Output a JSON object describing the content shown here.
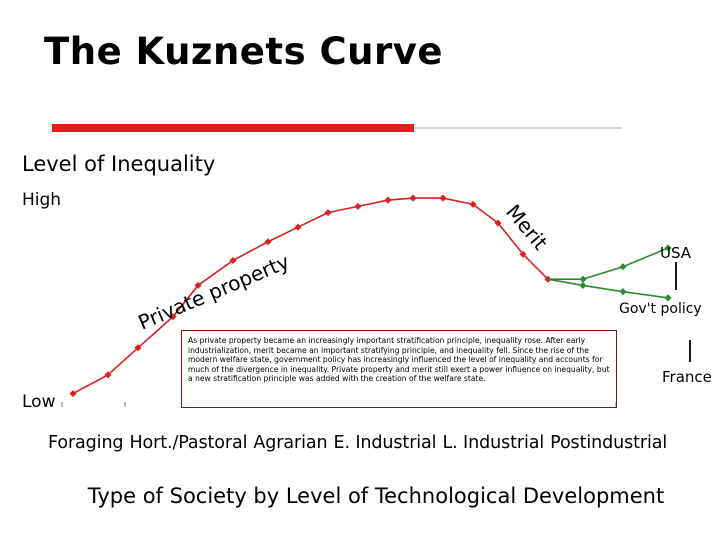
{
  "slide": {
    "title": "The Kuznets Curve",
    "accent_color": "#dd1f1f"
  },
  "chart_data": {
    "type": "line",
    "title": "",
    "ylabel": "Level of Inequality",
    "y_high_label": "High",
    "y_low_label": "Low",
    "xlabel": "Type of Society by Level of Technological Development",
    "categories": [
      "Foraging",
      "Hort./Pastoral",
      "Agrarian",
      "E. Industrial",
      "L. Industrial",
      "Postindustrial"
    ],
    "curve_annotations": {
      "private_property": "Private property",
      "merit": "Merit",
      "usa": "USA",
      "govt_policy": "Gov't policy",
      "france": "France"
    },
    "series": [
      {
        "color": "#dd1f1f",
        "marker_color": "#dd1f1f",
        "x": [
          0.35,
          0.7,
          1.0,
          1.35,
          1.6,
          1.95,
          2.3,
          2.6,
          2.9,
          3.2,
          3.5,
          3.75,
          4.05,
          4.35,
          4.6,
          4.85,
          5.1
        ],
        "y": [
          0.05,
          0.14,
          0.27,
          0.42,
          0.57,
          0.69,
          0.78,
          0.85,
          0.92,
          0.95,
          0.98,
          0.99,
          0.99,
          0.96,
          0.87,
          0.72,
          0.6
        ]
      },
      {
        "color": "#2e8b2e",
        "marker_color": "#2e8b2e",
        "label": "USA",
        "x": [
          5.1,
          5.45,
          5.85,
          6.3
        ],
        "y": [
          0.6,
          0.6,
          0.66,
          0.75
        ]
      },
      {
        "color": "#2e8b2e",
        "marker_color": "#2e8b2e",
        "label": "France",
        "x": [
          5.1,
          5.45,
          5.85,
          6.3
        ],
        "y": [
          0.6,
          0.57,
          0.54,
          0.51
        ]
      }
    ],
    "ylim": [
      0,
      1
    ],
    "grid": false
  },
  "note": {
    "text": "As private property became an increasingly important stratification principle, inequality rose. After early industrialization, merit became an important stratifying principle, and inequality fell. Since the rise of the modern welfare state, government policy has increasingly influenced the level of inequality and accounts for much of the divergence in inequality. Private property and merit still exert a power influence on inequality, but a new stratification principle was added with the creation of the welfare state."
  }
}
